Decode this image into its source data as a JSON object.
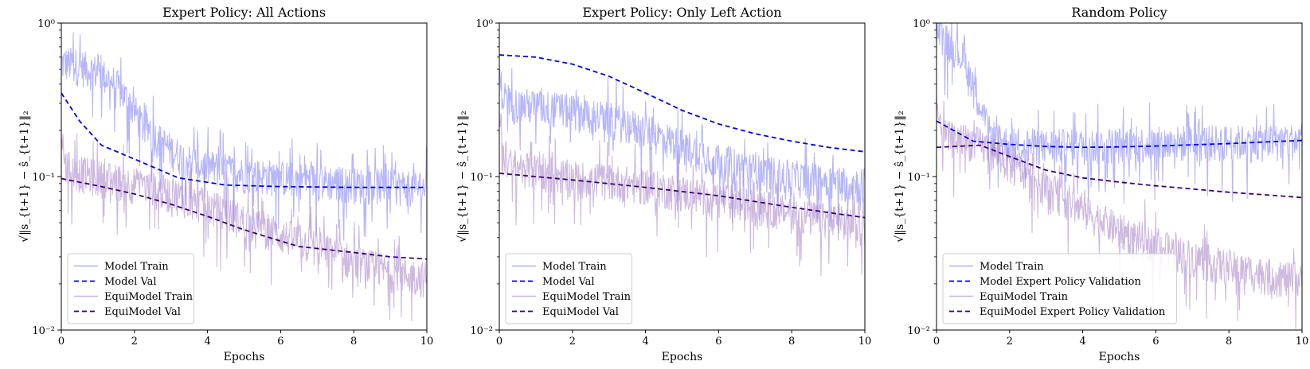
{
  "chart_data": [
    {
      "type": "line",
      "title": "Expert Policy: All Actions",
      "xlabel": "Epochs",
      "ylabel": "√‖s_{t+1} − ŝ_{t+1}‖₂",
      "xlim": [
        0,
        10
      ],
      "ylim": [
        0.01,
        1
      ],
      "yscale": "log",
      "x_ticks": [
        "0",
        "2",
        "4",
        "6",
        "8",
        "10"
      ],
      "y_ticks": [
        "10⁻²",
        "10⁻¹",
        "10⁰"
      ],
      "legend_position": "lower-left",
      "series": [
        {
          "name": "Model Train",
          "style": "noisy",
          "color": "#7a7af5",
          "x": [
            0,
            0.2,
            0.6,
            1.0,
            1.4,
            1.8,
            2.2,
            2.6,
            3.0,
            3.4,
            3.8,
            4.2,
            4.6,
            5.0,
            6.0,
            7.0,
            8.0,
            9.0,
            10.0
          ],
          "y": [
            0.55,
            0.55,
            0.52,
            0.48,
            0.42,
            0.32,
            0.22,
            0.18,
            0.15,
            0.13,
            0.12,
            0.115,
            0.11,
            0.105,
            0.1,
            0.095,
            0.09,
            0.088,
            0.085
          ]
        },
        {
          "name": "Model Val",
          "style": "dashed",
          "color": "#0000ee",
          "x": [
            0,
            0.5,
            1.1,
            2.0,
            3.2,
            4.5,
            6.0,
            8.0,
            10.0
          ],
          "y": [
            0.35,
            0.23,
            0.16,
            0.13,
            0.098,
            0.088,
            0.086,
            0.085,
            0.085
          ]
        },
        {
          "name": "EquiModel Train",
          "style": "noisy",
          "color": "#a67fc8",
          "x": [
            0,
            0.1,
            0.3,
            1.0,
            2.0,
            3.0,
            4.0,
            5.0,
            6.0,
            7.0,
            8.0,
            9.0,
            10.0
          ],
          "y": [
            0.2,
            0.12,
            0.11,
            0.1,
            0.09,
            0.078,
            0.065,
            0.052,
            0.042,
            0.035,
            0.028,
            0.024,
            0.022
          ]
        },
        {
          "name": "EquiModel Val",
          "style": "dashed",
          "color": "#3a0077",
          "x": [
            0,
            1,
            2,
            3,
            4,
            5,
            6,
            6.5,
            8,
            9,
            10
          ],
          "y": [
            0.097,
            0.087,
            0.077,
            0.066,
            0.055,
            0.045,
            0.038,
            0.035,
            0.032,
            0.03,
            0.029
          ]
        }
      ]
    },
    {
      "type": "line",
      "title": "Expert Policy: Only Left Action",
      "xlabel": "Epochs",
      "ylabel": "√‖s_{t+1} − ŝ_{t+1}‖₂",
      "xlim": [
        0,
        10
      ],
      "ylim": [
        0.01,
        1
      ],
      "yscale": "log",
      "x_ticks": [
        "0",
        "2",
        "4",
        "6",
        "8",
        "10"
      ],
      "y_ticks": [
        "10⁻²",
        "10⁻¹",
        "10⁰"
      ],
      "legend_position": "lower-left",
      "series": [
        {
          "name": "Model Train",
          "style": "noisy",
          "color": "#7a7af5",
          "x": [
            0,
            0.1,
            0.4,
            1.0,
            2.0,
            3.0,
            4.0,
            5.0,
            6.0,
            7.0,
            8.0,
            9.0,
            10.0
          ],
          "y": [
            0.45,
            0.34,
            0.3,
            0.29,
            0.27,
            0.24,
            0.2,
            0.16,
            0.13,
            0.11,
            0.1,
            0.095,
            0.09
          ]
        },
        {
          "name": "Model Val",
          "style": "dashed",
          "color": "#0000ee",
          "x": [
            0,
            1,
            2,
            3,
            4,
            5,
            6,
            7,
            8,
            9,
            10
          ],
          "y": [
            0.62,
            0.6,
            0.54,
            0.45,
            0.35,
            0.27,
            0.22,
            0.19,
            0.17,
            0.155,
            0.145
          ]
        },
        {
          "name": "EquiModel Train",
          "style": "noisy",
          "color": "#a67fc8",
          "x": [
            0,
            0.1,
            0.3,
            1.0,
            2.0,
            3.0,
            4.0,
            5.0,
            6.0,
            7.0,
            8.0,
            9.0,
            10.0
          ],
          "y": [
            0.3,
            0.14,
            0.12,
            0.11,
            0.1,
            0.095,
            0.088,
            0.08,
            0.072,
            0.065,
            0.058,
            0.052,
            0.048
          ]
        },
        {
          "name": "EquiModel Val",
          "style": "dashed",
          "color": "#3a0077",
          "x": [
            0,
            2,
            4,
            6,
            8,
            10
          ],
          "y": [
            0.105,
            0.095,
            0.085,
            0.075,
            0.063,
            0.054
          ]
        }
      ]
    },
    {
      "type": "line",
      "title": "Random Policy",
      "xlabel": "Epochs",
      "ylabel": "√‖s_{t+1} − ŝ_{t+1}‖₂",
      "xlim": [
        0,
        10
      ],
      "ylim": [
        0.01,
        1
      ],
      "yscale": "log",
      "x_ticks": [
        "0",
        "2",
        "4",
        "6",
        "8",
        "10"
      ],
      "y_ticks": [
        "10⁻²",
        "10⁻¹",
        "10⁰"
      ],
      "legend_position": "lower-left",
      "series": [
        {
          "name": "Model Train",
          "style": "noisy",
          "color": "#7a7af5",
          "x": [
            0,
            0.2,
            0.5,
            0.8,
            1.1,
            1.4,
            1.7,
            2.2,
            3.0,
            4.0,
            5.0,
            6.0,
            7.0,
            8.0,
            9.0,
            10.0
          ],
          "y": [
            0.9,
            0.8,
            0.7,
            0.55,
            0.35,
            0.2,
            0.17,
            0.165,
            0.16,
            0.16,
            0.165,
            0.165,
            0.17,
            0.17,
            0.17,
            0.175
          ]
        },
        {
          "name": "Model Expert Policy Validation",
          "style": "dashed",
          "color": "#0000ee",
          "x": [
            0,
            1,
            2,
            3,
            4,
            5,
            6,
            7,
            8,
            9,
            10
          ],
          "y": [
            0.23,
            0.17,
            0.162,
            0.157,
            0.155,
            0.156,
            0.158,
            0.161,
            0.164,
            0.168,
            0.172
          ]
        },
        {
          "name": "EquiModel Train",
          "style": "noisy",
          "color": "#a67fc8",
          "x": [
            0,
            0.1,
            0.3,
            1.0,
            1.5,
            2.0,
            3.0,
            4.0,
            5.0,
            6.0,
            7.0,
            8.0,
            9.0,
            10.0
          ],
          "y": [
            0.3,
            0.2,
            0.18,
            0.17,
            0.15,
            0.12,
            0.085,
            0.06,
            0.045,
            0.036,
            0.03,
            0.026,
            0.023,
            0.021
          ]
        },
        {
          "name": "EquiModel Expert Policy Validation",
          "style": "dashed",
          "color": "#3a0077",
          "x": [
            0,
            1.2,
            2.0,
            3.0,
            4.0,
            5.0,
            6.0,
            7.0,
            8.0,
            9.0,
            10.0
          ],
          "y": [
            0.155,
            0.16,
            0.135,
            0.11,
            0.098,
            0.092,
            0.087,
            0.083,
            0.079,
            0.076,
            0.073
          ]
        }
      ]
    }
  ]
}
